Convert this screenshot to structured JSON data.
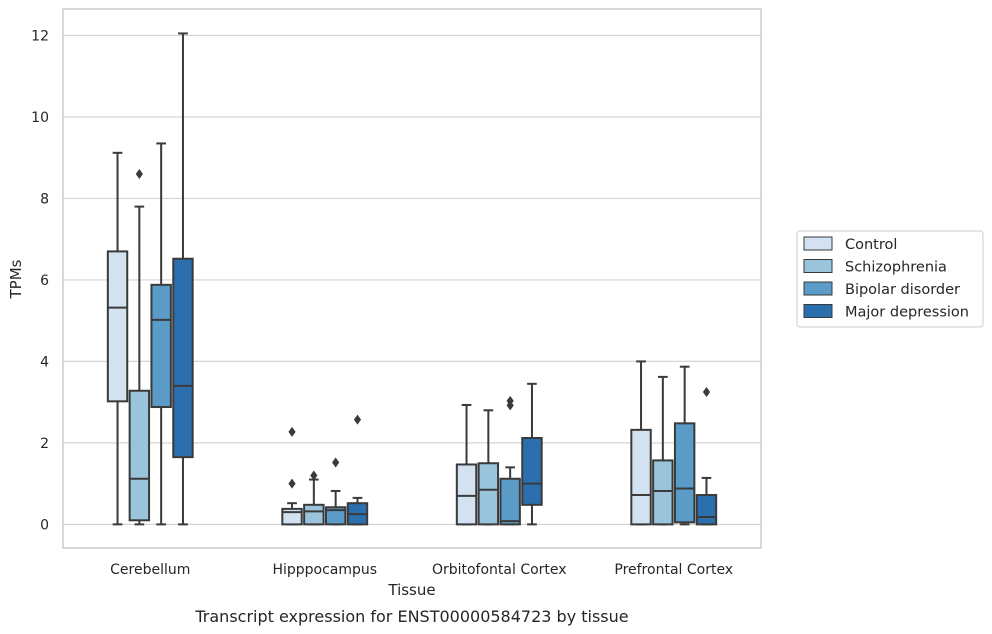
{
  "caption": "Transcript expression for ENST00000584723 by tissue",
  "chart_data": {
    "type": "box",
    "xlabel": "Tissue",
    "ylabel": "TPMs",
    "ylim": [
      -0.58,
      12.65
    ],
    "yticks": [
      0,
      2,
      4,
      6,
      8,
      10,
      12
    ],
    "grid": "horizontal",
    "legend_position": "right",
    "categories": [
      "Cerebellum",
      "Hipppocampus",
      "Orbitofontal Cortex",
      "Prefrontal Cortex"
    ],
    "series": [
      {
        "name": "Control",
        "color": "#d3e2f1",
        "boxes": [
          {
            "whislo": 0,
            "q1": 3.02,
            "med": 5.32,
            "q3": 6.7,
            "whishi": 9.12,
            "fliers": []
          },
          {
            "whislo": 0,
            "q1": 0,
            "med": 0.3,
            "q3": 0.38,
            "whishi": 0.52,
            "fliers": [
              1.0,
              2.27
            ]
          },
          {
            "whislo": 0,
            "q1": 0,
            "med": 0.7,
            "q3": 1.47,
            "whishi": 2.93,
            "fliers": []
          },
          {
            "whislo": 0,
            "q1": 0,
            "med": 0.72,
            "q3": 2.32,
            "whishi": 4.0,
            "fliers": []
          }
        ]
      },
      {
        "name": "Schizophrenia",
        "color": "#9ac3dc",
        "boxes": [
          {
            "whislo": 0,
            "q1": 0.1,
            "med": 1.12,
            "q3": 3.28,
            "whishi": 7.8,
            "fliers": [
              8.6
            ]
          },
          {
            "whislo": 0,
            "q1": 0,
            "med": 0.32,
            "q3": 0.48,
            "whishi": 1.1,
            "fliers": [
              1.2
            ]
          },
          {
            "whislo": 0,
            "q1": 0,
            "med": 0.85,
            "q3": 1.5,
            "whishi": 2.8,
            "fliers": []
          },
          {
            "whislo": 0,
            "q1": 0,
            "med": 0.82,
            "q3": 1.57,
            "whishi": 3.62,
            "fliers": []
          }
        ]
      },
      {
        "name": "Bipolar disorder",
        "color": "#5a9bc7",
        "boxes": [
          {
            "whislo": 0,
            "q1": 2.88,
            "med": 5.02,
            "q3": 5.88,
            "whishi": 9.35,
            "fliers": []
          },
          {
            "whislo": 0,
            "q1": 0,
            "med": 0.35,
            "q3": 0.42,
            "whishi": 0.82,
            "fliers": [
              1.52
            ]
          },
          {
            "whislo": 0,
            "q1": 0,
            "med": 0.08,
            "q3": 1.12,
            "whishi": 1.4,
            "fliers": [
              2.92,
              3.03
            ]
          },
          {
            "whislo": 0,
            "q1": 0.05,
            "med": 0.88,
            "q3": 2.48,
            "whishi": 3.87,
            "fliers": []
          }
        ]
      },
      {
        "name": "Major depression",
        "color": "#2c6faf",
        "boxes": [
          {
            "whislo": 0,
            "q1": 1.65,
            "med": 3.4,
            "q3": 6.52,
            "whishi": 12.05,
            "fliers": []
          },
          {
            "whislo": 0,
            "q1": 0,
            "med": 0.25,
            "q3": 0.52,
            "whishi": 0.65,
            "fliers": [
              2.57
            ]
          },
          {
            "whislo": 0,
            "q1": 0.48,
            "med": 1.0,
            "q3": 2.12,
            "whishi": 3.45,
            "fliers": []
          },
          {
            "whislo": 0,
            "q1": 0,
            "med": 0.18,
            "q3": 0.72,
            "whishi": 1.14,
            "fliers": [
              3.25
            ]
          }
        ]
      }
    ]
  }
}
